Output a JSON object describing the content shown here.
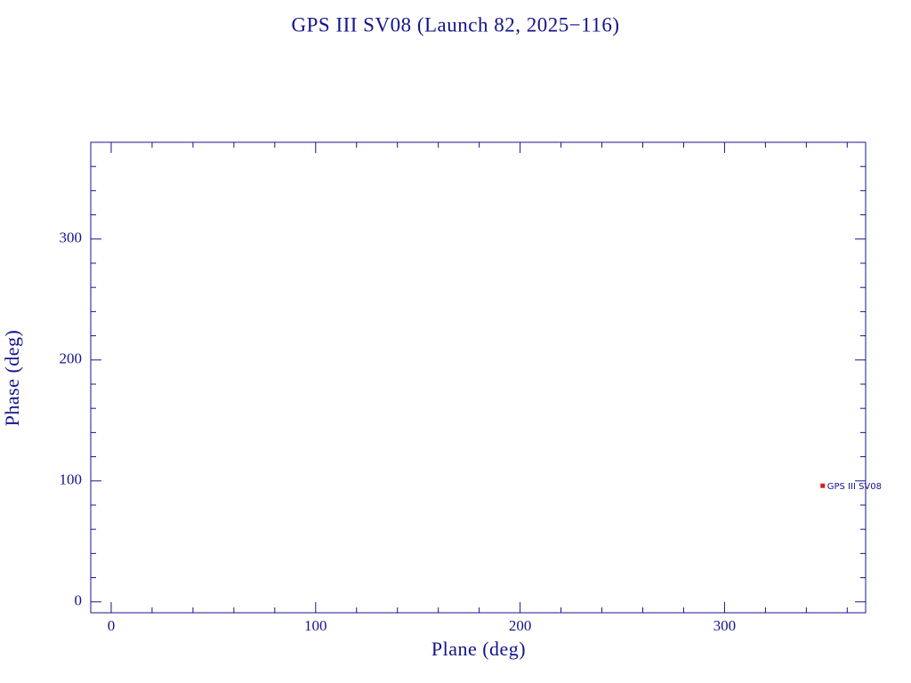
{
  "chart_data": {
    "type": "scatter",
    "title": "GPS III SV08 (Launch 82, 2025−116)",
    "x_label": "Plane (deg)",
    "y_label": "Phase (deg)",
    "xlim": [
      -10,
      369
    ],
    "ylim": [
      -9,
      380
    ],
    "xticks": [
      0,
      100,
      200,
      300
    ],
    "yticks": [
      0,
      100,
      200,
      300
    ],
    "xticks_minor": [
      20,
      40,
      60,
      80,
      120,
      140,
      160,
      180,
      220,
      240,
      260,
      280,
      320,
      340,
      360
    ],
    "yticks_minor": [
      20,
      40,
      60,
      80,
      120,
      140,
      160,
      180,
      220,
      240,
      260,
      280,
      320,
      340,
      360
    ],
    "series": [
      {
        "name": "GPS III SV08",
        "color": "#d42020",
        "x": [
          348
        ],
        "values": [
          96
        ]
      }
    ]
  }
}
